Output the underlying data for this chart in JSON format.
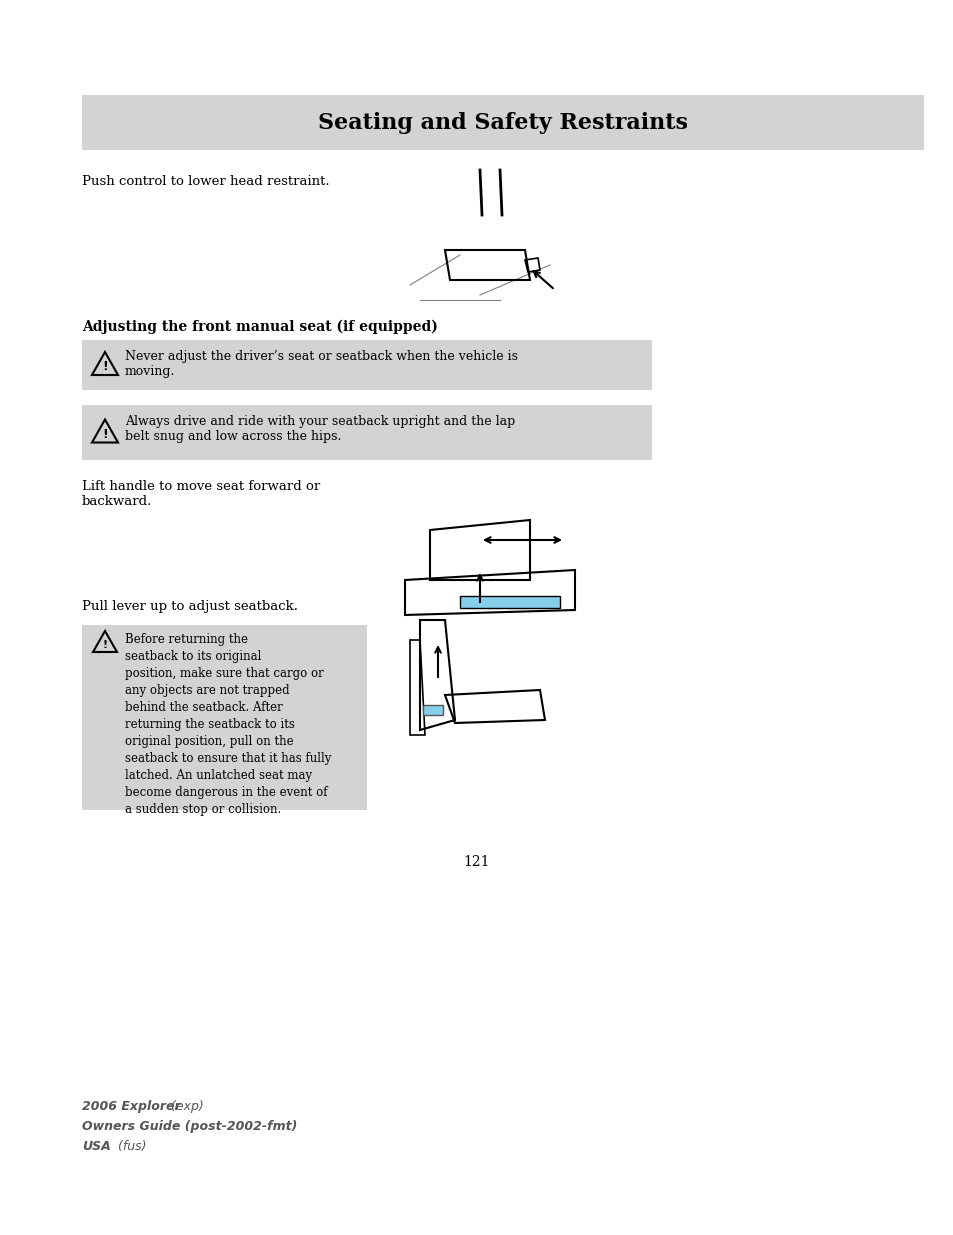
{
  "page_bg": "#ffffff",
  "header_bg": "#d3d3d3",
  "header_text": "Seating and Safety Restraints",
  "header_fontsize": 16,
  "body_text_color": "#000000",
  "warning_bg": "#d3d3d3",
  "section_title": "Adjusting the front manual seat (if equipped)",
  "text_push_control": "Push control to lower head restraint.",
  "text_lift_handle": "Lift handle to move seat forward or\nbackward.",
  "text_pull_lever": "Pull lever up to adjust seatback.",
  "warning1_text": "Never adjust the driver’s seat or seatback when the vehicle is\nmoving.",
  "warning2_text": "Always drive and ride with your seatback upright and the lap\nbelt snug and low across the hips.",
  "warning3_text": "Before returning the\nseatback to its original\nposition, make sure that cargo or\nany objects are not trapped\nbehind the seatback. After\nreturning the seatback to its\noriginal position, pull on the\nseatback to ensure that it has fully\nlatched. An unlatched seat may\nbecome dangerous in the event of\na sudden stop or collision.",
  "page_number": "121",
  "footer_line1": "2006 Explorer",
  "footer_line1_normal": " (exp)",
  "footer_line2": "Owners Guide (post-2002-fmt)",
  "footer_line3": "USA",
  "footer_line3_normal": " (fus)",
  "footer_color": "#555555"
}
